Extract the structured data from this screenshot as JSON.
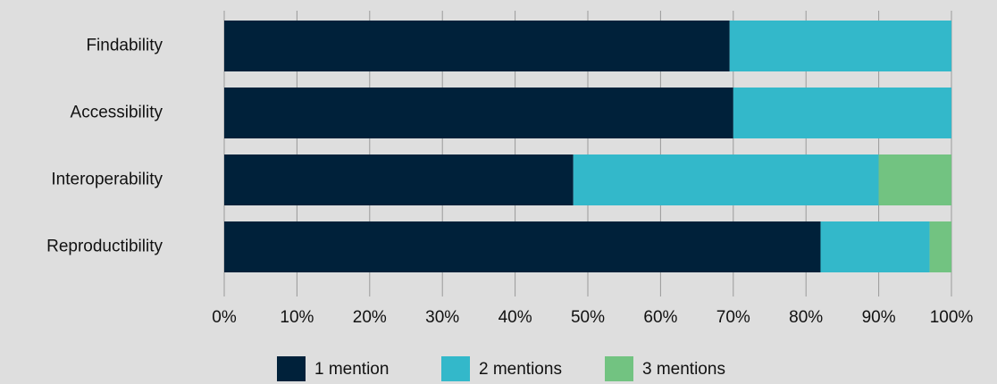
{
  "chart_data": {
    "type": "stacked_barh",
    "categories": [
      "Findability",
      "Accessibility",
      "Interoperability",
      "Reproductibility"
    ],
    "series": [
      {
        "name": "1 mention",
        "color": "#00213a",
        "values": [
          69.5,
          70,
          48,
          82
        ]
      },
      {
        "name": "2 mentions",
        "color": "#33b8ca",
        "values": [
          30.5,
          30,
          42,
          15
        ]
      },
      {
        "name": "3 mentions",
        "color": "#72c381",
        "values": [
          0,
          0,
          10,
          3
        ]
      }
    ],
    "xlim": [
      0,
      100
    ],
    "xticks": [
      {
        "value": 0,
        "label": "0%"
      },
      {
        "value": 10,
        "label": "10%"
      },
      {
        "value": 20,
        "label": "20%"
      },
      {
        "value": 30,
        "label": "30%"
      },
      {
        "value": 40,
        "label": "40%"
      },
      {
        "value": 50,
        "label": "50%"
      },
      {
        "value": 60,
        "label": "60%"
      },
      {
        "value": 70,
        "label": "70%"
      },
      {
        "value": 80,
        "label": "80%"
      },
      {
        "value": 90,
        "label": "90%"
      },
      {
        "value": 100,
        "label": "100%"
      }
    ],
    "grid": true,
    "legend": "bottom"
  }
}
